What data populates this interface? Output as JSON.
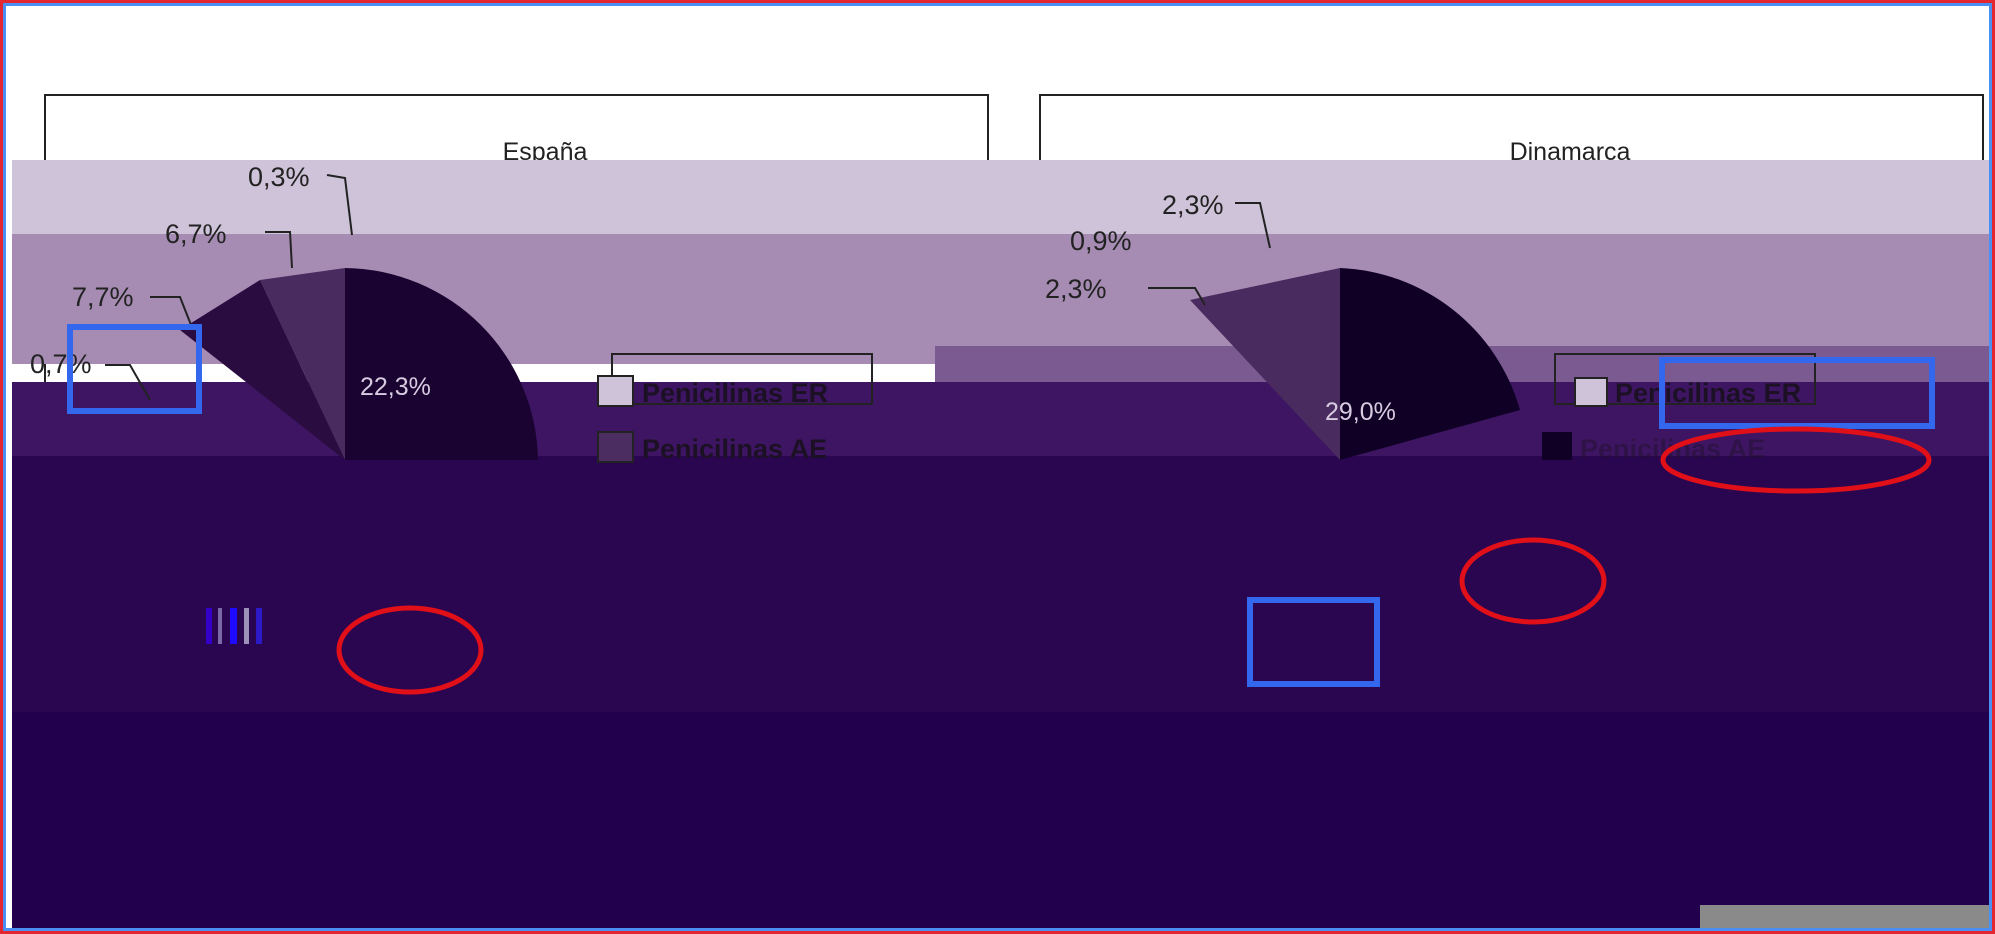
{
  "colors": {
    "frame_red": "#e3262f",
    "frame_blue": "#4a8ff2",
    "annotation_red": "#e10f18",
    "annotation_blue": "#3367ee",
    "glitch_light": "#cfc3d9",
    "glitch_mid": "#a68cb3",
    "glitch_dark": "#22004e",
    "glitch_band": "#3d1562"
  },
  "chart_data": [
    {
      "type": "pie",
      "title": "España",
      "legend": [
        "Penicilinas ER",
        "Penicilinas AE"
      ],
      "legend_position": "right",
      "visible_labels": [
        "0,3%",
        "6,7%",
        "7,7%",
        "0,7%",
        "22,3%"
      ],
      "values": [
        0.3,
        6.7,
        7.7,
        0.7,
        22.3
      ]
    },
    {
      "type": "pie",
      "title": "Dinamarca",
      "legend": [
        "Penicilinas ER",
        "Penicilinas AE"
      ],
      "legend_position": "right",
      "visible_labels": [
        "2,3%",
        "0,9%",
        "2,3%",
        "29,0%"
      ],
      "values": [
        2.3,
        0.9,
        2.3,
        29.0
      ]
    }
  ]
}
